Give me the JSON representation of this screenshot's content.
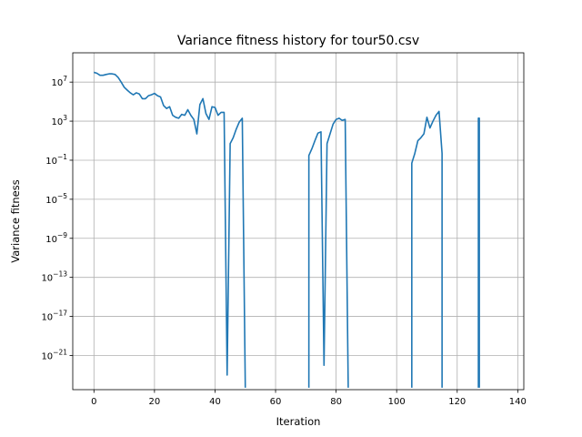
{
  "chart_data": {
    "type": "line",
    "title": "Variance fitness history for tour50.csv",
    "xlabel": "Iteration",
    "ylabel": "Variance fitness",
    "yscale": "log",
    "xlim": [
      -7,
      142
    ],
    "ylim_exponent": [
      -24.5,
      10
    ],
    "xticks": [
      0,
      20,
      40,
      60,
      80,
      100,
      120,
      140
    ],
    "yticks": [
      {
        "base": "10",
        "exp": "7",
        "value": 10000000.0
      },
      {
        "base": "10",
        "exp": "3",
        "value": 1000.0
      },
      {
        "base": "10",
        "exp": "−1",
        "value": 0.1
      },
      {
        "base": "10",
        "exp": "−5",
        "value": 1e-05
      },
      {
        "base": "10",
        "exp": "−9",
        "value": 1e-09
      },
      {
        "base": "10",
        "exp": "−13",
        "value": 1e-13
      },
      {
        "base": "10",
        "exp": "−17",
        "value": 1e-17
      },
      {
        "base": "10",
        "exp": "−21",
        "value": 1e-21
      }
    ],
    "grid": true,
    "line_color": "#1f77b4",
    "series": [
      {
        "segments": [
          [
            [
              0,
              100000000.0
            ],
            [
              1,
              80000000.0
            ],
            [
              2,
              50000000.0
            ],
            [
              3,
              50000000.0
            ],
            [
              4,
              60000000.0
            ],
            [
              5,
              70000000.0
            ],
            [
              6,
              70000000.0
            ],
            [
              7,
              60000000.0
            ],
            [
              8,
              30000000.0
            ],
            [
              9,
              10000000.0
            ],
            [
              10,
              3000000.0
            ],
            [
              11,
              1500000.0
            ],
            [
              12,
              800000.0
            ],
            [
              13,
              500000.0
            ],
            [
              14,
              800000.0
            ],
            [
              15,
              600000.0
            ],
            [
              16,
              200000.0
            ],
            [
              17,
              200000.0
            ],
            [
              18,
              400000.0
            ],
            [
              19,
              500000.0
            ],
            [
              20,
              700000.0
            ],
            [
              21,
              400000.0
            ],
            [
              22,
              300000.0
            ],
            [
              23,
              40000.0
            ],
            [
              24,
              20000.0
            ],
            [
              25,
              30000.0
            ],
            [
              26,
              4000.0
            ],
            [
              27,
              2500.0
            ],
            [
              28,
              2000.0
            ],
            [
              29,
              5000.0
            ],
            [
              30,
              4000.0
            ],
            [
              31,
              15000.0
            ],
            [
              32,
              4000.0
            ],
            [
              33,
              1500.0
            ],
            [
              34,
              50
            ],
            [
              35,
              50000.0
            ],
            [
              36,
              200000.0
            ],
            [
              37,
              6000.0
            ],
            [
              38,
              1500.0
            ],
            [
              39,
              30000.0
            ],
            [
              40,
              25000.0
            ],
            [
              41,
              4000.0
            ],
            [
              42,
              8000.0
            ],
            [
              43,
              8000.0
            ],
            [
              44,
              1e-23
            ],
            [
              45,
              5
            ],
            [
              46,
              20
            ],
            [
              47,
              150
            ],
            [
              48,
              800
            ],
            [
              49,
              2000.0
            ],
            [
              50,
              5e-25
            ]
          ],
          [
            [
              71,
              5e-25
            ],
            [
              71,
              0.3
            ],
            [
              72,
              1.5
            ],
            [
              73,
              10
            ],
            [
              74,
              60
            ],
            [
              75,
              80
            ],
            [
              76,
              1e-22
            ],
            [
              77,
              5
            ],
            [
              78,
              50
            ],
            [
              79,
              500
            ],
            [
              80,
              1500.0
            ],
            [
              81,
              2000.0
            ],
            [
              82,
              1200.0
            ],
            [
              83,
              1500.0
            ],
            [
              84,
              5e-25
            ]
          ],
          [
            [
              105,
              5e-25
            ],
            [
              105,
              0.05
            ],
            [
              106,
              0.5
            ],
            [
              107,
              10
            ],
            [
              108,
              20
            ],
            [
              109,
              50
            ],
            [
              110,
              2500.0
            ],
            [
              111,
              200
            ],
            [
              112,
              1000.0
            ],
            [
              113,
              4000.0
            ],
            [
              114,
              10000.0
            ],
            [
              115,
              0.5
            ],
            [
              115,
              5e-25
            ]
          ],
          [
            [
              127,
              5e-25
            ],
            [
              127,
              2000.0
            ],
            [
              127.3,
              2000.0
            ],
            [
              127.3,
              5e-25
            ]
          ]
        ]
      }
    ]
  }
}
